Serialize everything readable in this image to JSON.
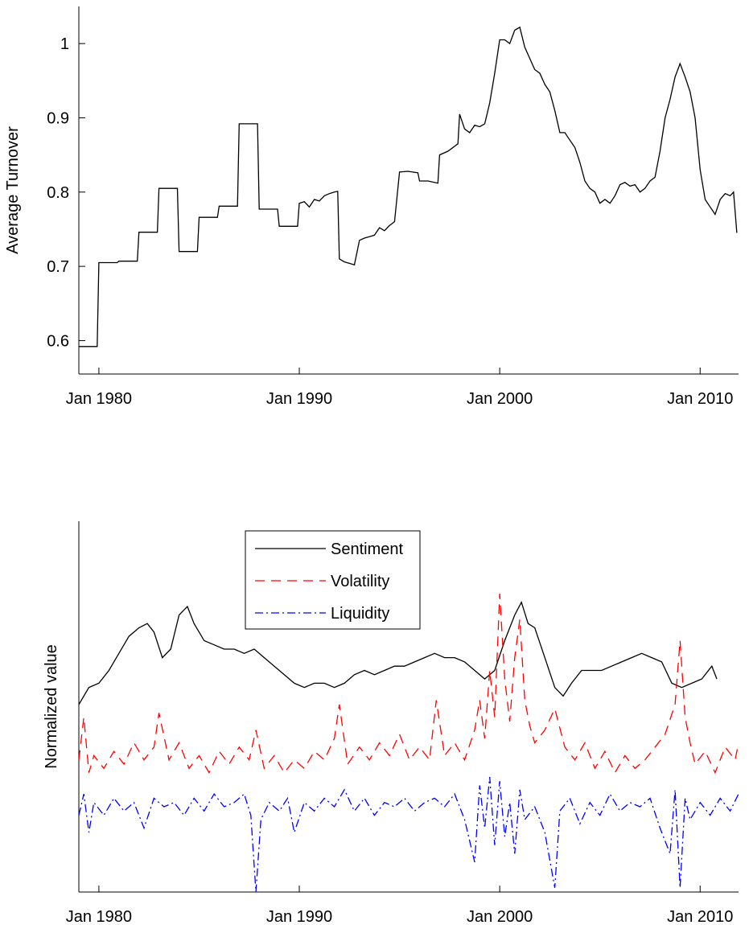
{
  "chart_data": [
    {
      "type": "line",
      "ylabel": "Average Turnover",
      "xlim": [
        "1979-01",
        "2011-12"
      ],
      "xticks": [
        {
          "value": "1980-01",
          "label": "Jan 1980"
        },
        {
          "value": "1990-01",
          "label": "Jan 1990"
        },
        {
          "value": "2000-01",
          "label": "Jan 2000"
        },
        {
          "value": "2010-01",
          "label": "Jan 2010"
        }
      ],
      "ylim": [
        0.555,
        1.05
      ],
      "yticks": [
        0.6,
        0.7,
        0.8,
        0.9,
        1
      ],
      "color": "#000000",
      "x": [
        "1979-01",
        "1979-12",
        "1980-01",
        "1980-12",
        "1981-01",
        "1981-12",
        "1982-01",
        "1982-12",
        "1983-01",
        "1983-12",
        "1984-01",
        "1984-12",
        "1985-01",
        "1985-12",
        "1986-01",
        "1986-12",
        "1987-01",
        "1987-12",
        "1988-01",
        "1988-12",
        "1989-01",
        "1989-12",
        "1990-01",
        "1990-04",
        "1990-07",
        "1990-10",
        "1991-01",
        "1991-04",
        "1991-07",
        "1991-10",
        "1991-12",
        "1992-01",
        "1992-04",
        "1992-07",
        "1992-10",
        "1993-01",
        "1993-04",
        "1993-07",
        "1993-10",
        "1994-01",
        "1994-04",
        "1994-07",
        "1994-10",
        "1995-01",
        "1995-06",
        "1995-12",
        "1996-01",
        "1996-06",
        "1996-12",
        "1997-01",
        "1997-06",
        "1997-12",
        "1998-01",
        "1998-04",
        "1998-07",
        "1998-10",
        "1999-01",
        "1999-04",
        "1999-07",
        "1999-10",
        "2000-01",
        "2000-04",
        "2000-07",
        "2000-10",
        "2001-01",
        "2001-04",
        "2001-07",
        "2001-10",
        "2002-01",
        "2002-04",
        "2002-07",
        "2002-10",
        "2003-01",
        "2003-04",
        "2003-07",
        "2003-10",
        "2004-01",
        "2004-04",
        "2004-07",
        "2004-10",
        "2005-01",
        "2005-04",
        "2005-07",
        "2005-10",
        "2006-01",
        "2006-04",
        "2006-07",
        "2006-10",
        "2007-01",
        "2007-04",
        "2007-07",
        "2007-10",
        "2008-01",
        "2008-04",
        "2008-07",
        "2008-10",
        "2009-01",
        "2009-04",
        "2009-07",
        "2009-10",
        "2010-01",
        "2010-04",
        "2010-07",
        "2010-10",
        "2011-01",
        "2011-04",
        "2011-07",
        "2011-09",
        "2011-11"
      ],
      "values": [
        0.592,
        0.592,
        0.705,
        0.705,
        0.707,
        0.707,
        0.746,
        0.746,
        0.805,
        0.805,
        0.72,
        0.72,
        0.766,
        0.766,
        0.781,
        0.781,
        0.892,
        0.892,
        0.777,
        0.777,
        0.754,
        0.754,
        0.785,
        0.787,
        0.78,
        0.79,
        0.788,
        0.795,
        0.798,
        0.8,
        0.801,
        0.71,
        0.706,
        0.704,
        0.702,
        0.735,
        0.738,
        0.74,
        0.742,
        0.752,
        0.748,
        0.755,
        0.76,
        0.827,
        0.828,
        0.826,
        0.815,
        0.815,
        0.812,
        0.85,
        0.855,
        0.865,
        0.905,
        0.885,
        0.88,
        0.89,
        0.888,
        0.892,
        0.92,
        0.96,
        1.005,
        1.005,
        1.0,
        1.018,
        1.022,
        0.995,
        0.98,
        0.965,
        0.96,
        0.945,
        0.935,
        0.91,
        0.88,
        0.88,
        0.87,
        0.86,
        0.84,
        0.815,
        0.805,
        0.8,
        0.785,
        0.79,
        0.785,
        0.795,
        0.81,
        0.813,
        0.808,
        0.81,
        0.8,
        0.805,
        0.815,
        0.82,
        0.855,
        0.9,
        0.925,
        0.955,
        0.973,
        0.955,
        0.935,
        0.9,
        0.83,
        0.79,
        0.78,
        0.77,
        0.79,
        0.798,
        0.795,
        0.8,
        0.745
      ]
    },
    {
      "type": "line",
      "ylabel": "Normalized value",
      "legend": "upper center",
      "xlim": [
        "1979-01",
        "2011-12"
      ],
      "xticks": [
        {
          "value": "1980-01",
          "label": "Jan 1980"
        },
        {
          "value": "1990-01",
          "label": "Jan 1990"
        },
        {
          "value": "2000-01",
          "label": "Jan 2000"
        },
        {
          "value": "2010-01",
          "label": "Jan 2010"
        }
      ],
      "ylim": [
        -4.7,
        4.0
      ],
      "series": [
        {
          "name": "Sentiment",
          "color": "#000000",
          "linestyle": "solid",
          "x": [
            "1979-01",
            "1979-07",
            "1980-01",
            "1980-07",
            "1981-01",
            "1981-07",
            "1982-01",
            "1982-06",
            "1982-10",
            "1983-03",
            "1983-08",
            "1984-01",
            "1984-06",
            "1984-10",
            "1985-04",
            "1985-10",
            "1986-04",
            "1986-10",
            "1987-04",
            "1987-10",
            "1988-04",
            "1988-10",
            "1989-04",
            "1989-10",
            "1990-04",
            "1990-10",
            "1991-04",
            "1991-10",
            "1992-04",
            "1992-10",
            "1993-04",
            "1993-10",
            "1994-04",
            "1994-10",
            "1995-04",
            "1995-10",
            "1996-04",
            "1996-10",
            "1997-04",
            "1997-10",
            "1998-04",
            "1998-10",
            "1999-04",
            "1999-10",
            "2000-04",
            "2000-10",
            "2001-02",
            "2001-06",
            "2001-10",
            "2002-04",
            "2002-10",
            "2003-03",
            "2003-08",
            "2004-02",
            "2004-08",
            "2005-02",
            "2005-08",
            "2006-02",
            "2006-08",
            "2007-02",
            "2007-08",
            "2008-02",
            "2008-08",
            "2009-02",
            "2009-08",
            "2010-02",
            "2010-08",
            "2010-11"
          ],
          "values": [
            -0.3,
            0.1,
            0.2,
            0.5,
            0.9,
            1.3,
            1.5,
            1.6,
            1.4,
            0.8,
            1.0,
            1.8,
            2.0,
            1.6,
            1.2,
            1.1,
            1.0,
            1.0,
            0.9,
            1.0,
            0.8,
            0.6,
            0.4,
            0.2,
            0.1,
            0.2,
            0.2,
            0.1,
            0.2,
            0.4,
            0.5,
            0.4,
            0.5,
            0.6,
            0.6,
            0.7,
            0.8,
            0.9,
            0.8,
            0.8,
            0.7,
            0.5,
            0.3,
            0.5,
            1.2,
            1.8,
            2.1,
            1.6,
            1.5,
            0.8,
            0.1,
            -0.1,
            0.2,
            0.5,
            0.5,
            0.5,
            0.6,
            0.7,
            0.8,
            0.9,
            0.8,
            0.7,
            0.2,
            0.1,
            0.2,
            0.3,
            0.6,
            0.3
          ]
        },
        {
          "name": "Volatility",
          "color": "#ff0000",
          "linestyle": "dashed",
          "x": [
            "1979-01",
            "1979-04",
            "1979-07",
            "1979-10",
            "1980-04",
            "1980-10",
            "1981-04",
            "1981-10",
            "1982-04",
            "1982-10",
            "1983-01",
            "1983-07",
            "1984-01",
            "1984-07",
            "1985-01",
            "1985-07",
            "1986-01",
            "1986-07",
            "1987-01",
            "1987-07",
            "1987-11",
            "1988-04",
            "1988-10",
            "1989-04",
            "1989-10",
            "1990-04",
            "1990-10",
            "1991-04",
            "1991-10",
            "1992-01",
            "1992-06",
            "1993-01",
            "1993-07",
            "1994-01",
            "1994-07",
            "1995-01",
            "1995-07",
            "1996-01",
            "1996-07",
            "1996-11",
            "1997-04",
            "1997-10",
            "1998-04",
            "1998-10",
            "1999-01",
            "1999-04",
            "1999-07",
            "1999-10",
            "2000-01",
            "2000-04",
            "2000-07",
            "2000-10",
            "2001-01",
            "2001-04",
            "2001-07",
            "2001-10",
            "2002-04",
            "2002-10",
            "2003-04",
            "2003-10",
            "2004-04",
            "2004-10",
            "2005-04",
            "2005-10",
            "2006-04",
            "2006-10",
            "2007-04",
            "2007-10",
            "2008-04",
            "2008-10",
            "2009-01",
            "2009-04",
            "2009-07",
            "2009-10",
            "2010-04",
            "2010-10",
            "2011-04",
            "2011-10",
            "2011-12"
          ],
          "values": [
            -1.6,
            -0.6,
            -1.9,
            -1.5,
            -1.8,
            -1.4,
            -1.7,
            -1.2,
            -1.6,
            -1.3,
            -0.5,
            -1.6,
            -1.2,
            -1.8,
            -1.5,
            -1.9,
            -1.4,
            -1.7,
            -1.3,
            -1.6,
            -0.9,
            -1.8,
            -1.5,
            -1.9,
            -1.6,
            -1.8,
            -1.4,
            -1.6,
            -1.1,
            -0.3,
            -1.7,
            -1.3,
            -1.6,
            -1.2,
            -1.5,
            -1.0,
            -1.6,
            -1.3,
            -1.6,
            -0.2,
            -1.5,
            -1.2,
            -1.6,
            -0.9,
            -0.2,
            -1.1,
            0.5,
            -0.6,
            2.3,
            0.3,
            -0.7,
            0.8,
            1.7,
            -0.2,
            -0.8,
            -1.2,
            -0.9,
            -0.4,
            -1.3,
            -1.6,
            -1.2,
            -1.8,
            -1.4,
            -1.9,
            -1.5,
            -1.8,
            -1.6,
            -1.3,
            -1.0,
            -0.3,
            1.2,
            -0.6,
            -1.2,
            -1.7,
            -1.4,
            -1.9,
            -1.3,
            -1.6,
            -1.2
          ]
        },
        {
          "name": "Liquidity",
          "color": "#0000ff",
          "linestyle": "dashdot",
          "x": [
            "1979-01",
            "1979-04",
            "1979-07",
            "1979-10",
            "1980-04",
            "1980-10",
            "1981-04",
            "1981-10",
            "1982-04",
            "1982-10",
            "1983-04",
            "1983-10",
            "1984-04",
            "1984-10",
            "1985-04",
            "1985-10",
            "1986-04",
            "1986-10",
            "1987-04",
            "1987-08",
            "1987-11",
            "1988-02",
            "1988-07",
            "1989-01",
            "1989-06",
            "1989-10",
            "1990-04",
            "1990-10",
            "1991-04",
            "1991-10",
            "1992-04",
            "1992-10",
            "1993-04",
            "1993-10",
            "1994-04",
            "1994-10",
            "1995-04",
            "1995-10",
            "1996-04",
            "1996-10",
            "1997-04",
            "1997-10",
            "1998-04",
            "1998-10",
            "1999-01",
            "1999-04",
            "1999-07",
            "1999-10",
            "2000-01",
            "2000-04",
            "2000-07",
            "2000-10",
            "2001-01",
            "2001-04",
            "2001-10",
            "2002-04",
            "2002-10",
            "2003-01",
            "2003-07",
            "2004-01",
            "2004-07",
            "2005-01",
            "2005-07",
            "2006-01",
            "2006-07",
            "2007-01",
            "2007-07",
            "2008-01",
            "2008-07",
            "2008-10",
            "2009-01",
            "2009-04",
            "2009-07",
            "2010-01",
            "2010-07",
            "2011-01",
            "2011-07",
            "2011-12"
          ],
          "values": [
            -2.9,
            -2.4,
            -3.3,
            -2.6,
            -2.9,
            -2.5,
            -2.8,
            -2.6,
            -3.2,
            -2.5,
            -2.7,
            -2.6,
            -2.9,
            -2.5,
            -2.8,
            -2.4,
            -2.7,
            -2.6,
            -2.4,
            -2.9,
            -4.7,
            -3.0,
            -2.6,
            -2.8,
            -2.5,
            -3.3,
            -2.6,
            -2.8,
            -2.5,
            -2.7,
            -2.3,
            -2.8,
            -2.5,
            -2.9,
            -2.6,
            -2.7,
            -2.5,
            -2.8,
            -2.6,
            -2.5,
            -2.7,
            -2.4,
            -3.0,
            -4.0,
            -2.2,
            -3.2,
            -2.0,
            -3.6,
            -2.1,
            -3.4,
            -2.6,
            -3.8,
            -2.3,
            -3.0,
            -2.7,
            -3.3,
            -4.6,
            -2.8,
            -2.5,
            -3.1,
            -2.6,
            -2.9,
            -2.4,
            -2.8,
            -2.6,
            -2.7,
            -2.5,
            -3.2,
            -3.8,
            -2.3,
            -4.6,
            -2.5,
            -3.0,
            -2.6,
            -2.9,
            -2.5,
            -2.8,
            -2.4
          ]
        }
      ]
    }
  ]
}
